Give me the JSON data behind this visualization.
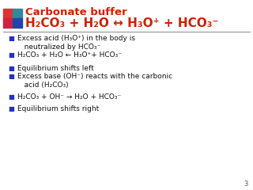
{
  "bg_color": "#ffffff",
  "title": "Carbonate buffer",
  "title_color": "#cc2200",
  "title_fontsize": 9.5,
  "header_formula": "H₂CO₃ + H₂O ↔ H₃O⁺ + HCO₃⁻",
  "header_color": "#cc2200",
  "header_fontsize": 11,
  "line_color": "#888888",
  "bullet_color": "#2233bb",
  "bullet_char": "■",
  "body_color": "#111111",
  "body_fontsize": 6.5,
  "page_number": "3",
  "page_number_color": "#555555",
  "page_number_fontsize": 6,
  "bullets": [
    "Excess acid (H₃O⁺) in the body is\n   neutralized by HCO₃⁻",
    "H₂CO₃ + H₂O ← H₃O⁺+ HCO₃⁻",
    "Equilibrium shifts left",
    "Excess base (OH⁻) reacts with the carbonic\n   acid (H₂CO₃)",
    "H₂CO₃ + OH⁻ → H₂O + HCO₃⁻",
    "Equilibrium shifts right"
  ],
  "logo_top_left": "#dd3333",
  "logo_top_right": "#338899",
  "logo_bottom_left": "#cc2244",
  "logo_bottom_right": "#2244aa"
}
